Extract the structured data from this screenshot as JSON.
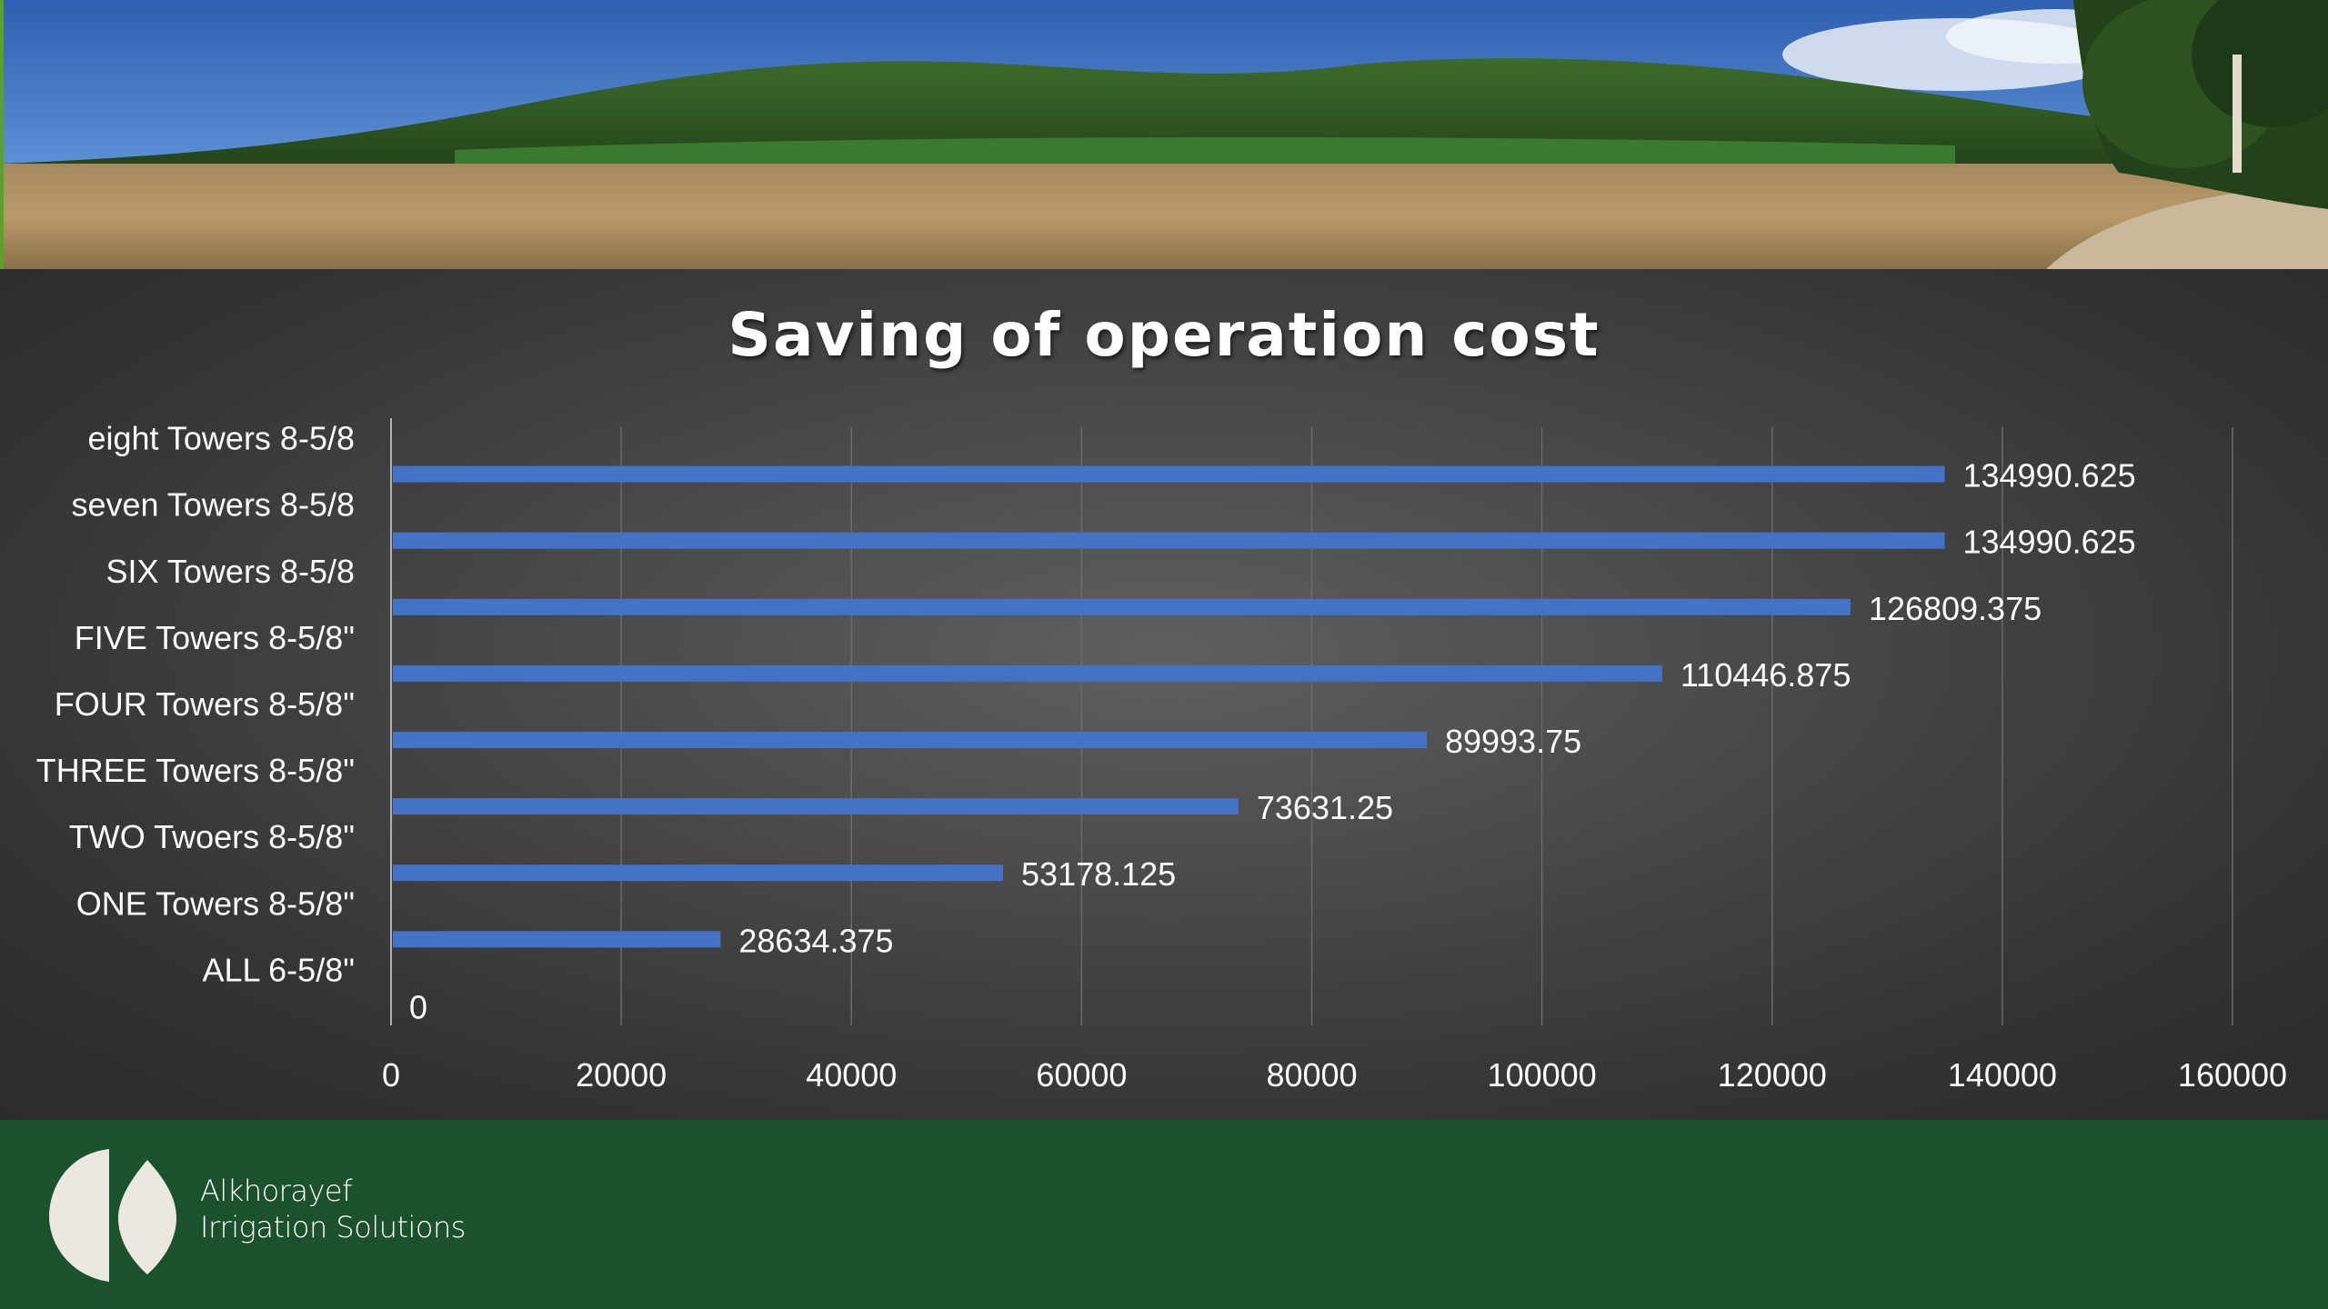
{
  "colors": {
    "bar": "#4472c4",
    "panel_bg": "#3f3f3f",
    "footer_bg": "#1b522b",
    "text": "#ffffff"
  },
  "brand": {
    "line1": "Alkhorayef",
    "line2": "Irrigation Solutions"
  },
  "chart_data": {
    "type": "bar",
    "orientation": "horizontal",
    "title": "Saving of operation cost",
    "categories": [
      "ALL 6-5/8\"",
      "ONE Towers 8-5/8\"",
      "TWO Twoers 8-5/8\"",
      "THREE Towers 8-5/8\"",
      "FOUR Towers 8-5/8\"",
      "FIVE Towers 8-5/8\"",
      "SIX Towers 8-5/8",
      "seven Towers 8-5/8",
      "eight Towers 8-5/8"
    ],
    "values": [
      0,
      28634.375,
      53178.125,
      73631.25,
      89993.75,
      110446.875,
      126809.375,
      134990.625,
      134990.625
    ],
    "data_labels": [
      "0",
      "28634.375",
      "53178.125",
      "73631.25",
      "89993.75",
      "110446.875",
      "126809.375",
      "134990.625",
      "134990.625"
    ],
    "xlim": [
      0,
      160000
    ],
    "x_ticks": [
      "0",
      "20000",
      "40000",
      "60000",
      "80000",
      "100000",
      "120000",
      "140000",
      "160000"
    ],
    "grid": true,
    "legend": "none"
  }
}
